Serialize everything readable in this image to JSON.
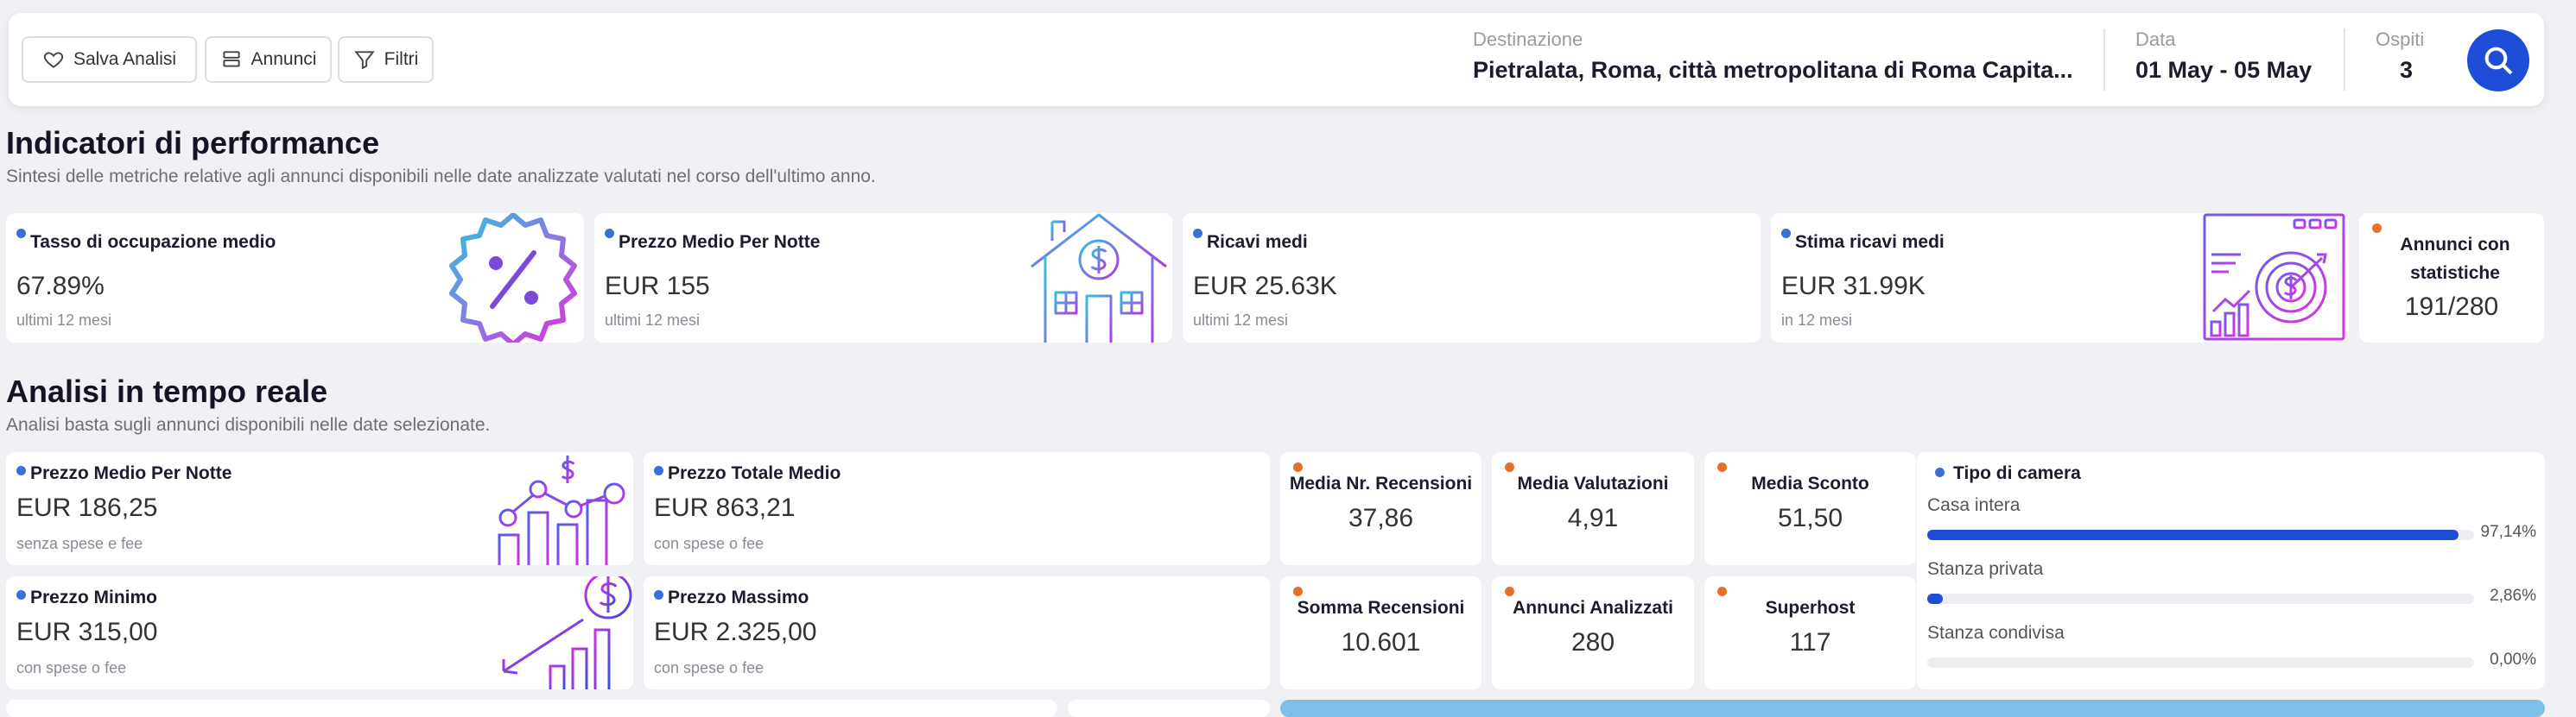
{
  "toolbar": {
    "save_label": "Salva Analisi",
    "listings_label": "Annunci",
    "filters_label": "Filtri"
  },
  "search": {
    "destination_label": "Destinazione",
    "destination_value": "Pietralata, Roma, città metropolitana di Roma Capita...",
    "date_label": "Data",
    "date_value": "01 May - 05 May",
    "guests_label": "Ospiti",
    "guests_value": "3"
  },
  "performance": {
    "title": "Indicatori di performance",
    "subtitle": "Sintesi delle metriche relative agli annunci disponibili nelle date analizzate valutati nel corso dell'ultimo anno.",
    "occupancy": {
      "title": "Tasso di occupazione medio",
      "value": "67.89%",
      "note": "ultimi 12 mesi"
    },
    "avg_price": {
      "title": "Prezzo Medio Per Notte",
      "value": "EUR 155",
      "note": "ultimi 12 mesi"
    },
    "avg_revenue": {
      "title": "Ricavi medi",
      "value": "EUR 25.63K",
      "note": "ultimi 12 mesi"
    },
    "est_revenue": {
      "title": "Stima ricavi medi",
      "value": "EUR 31.99K",
      "note": "in 12 mesi"
    },
    "listings_stats": {
      "title": "Annunci con statistiche",
      "value": "191/280"
    }
  },
  "realtime": {
    "title": "Analisi in tempo reale",
    "subtitle": "Analisi basta sugli annunci disponibili nelle date selezionate.",
    "avg_price_night": {
      "title": "Prezzo Medio Per Notte",
      "value": "EUR 186,25",
      "note": "senza spese e fee"
    },
    "avg_total_price": {
      "title": "Prezzo Totale Medio",
      "value": "EUR 863,21",
      "note": "con spese o fee"
    },
    "min_price": {
      "title": "Prezzo Minimo",
      "value": "EUR 315,00",
      "note": "con spese o fee"
    },
    "max_price": {
      "title": "Prezzo Massimo",
      "value": "EUR 2.325,00",
      "note": "con spese o fee"
    },
    "avg_reviews": {
      "title": "Media Nr. Recensioni",
      "value": "37,86"
    },
    "avg_ratings": {
      "title": "Media Valutazioni",
      "value": "4,91"
    },
    "avg_discount": {
      "title": "Media Sconto",
      "value": "51,50"
    },
    "total_reviews": {
      "title": "Somma Recensioni",
      "value": "10.601"
    },
    "analyzed": {
      "title": "Annunci Analizzati",
      "value": "280"
    },
    "superhost": {
      "title": "Superhost",
      "value": "117"
    },
    "room_type": {
      "title": "Tipo di camera",
      "items": [
        {
          "label": "Casa intera",
          "pct_text": "97,14%",
          "fraction": 0.9714
        },
        {
          "label": "Stanza privata",
          "pct_text": "2,86%",
          "fraction": 0.0286
        },
        {
          "label": "Stanza condivisa",
          "pct_text": "0,00%",
          "fraction": 0.0
        }
      ]
    }
  },
  "colors": {
    "accent": "#1e4ed8",
    "dot_blue": "#3a6fd8",
    "dot_orange": "#e5702a",
    "icon_gradient_start": "#2fc3e0",
    "icon_gradient_end": "#e22ee0"
  }
}
